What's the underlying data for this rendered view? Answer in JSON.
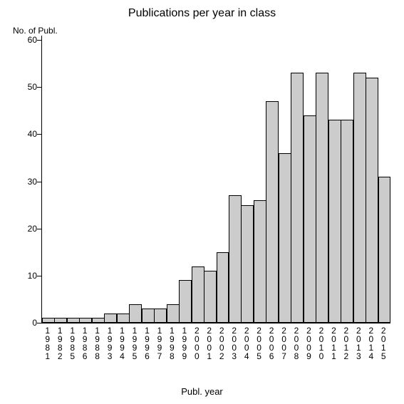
{
  "chart": {
    "type": "bar",
    "title": "Publications per year in class",
    "title_fontsize": 16,
    "ylabel": "No. of Publ.",
    "xlabel": "Publ. year",
    "label_fontsize": 12,
    "ylim": [
      0,
      60
    ],
    "ytick_step": 10,
    "yticks": [
      0,
      10,
      20,
      30,
      40,
      50,
      60
    ],
    "background_color": "#ffffff",
    "bar_color": "#cccccc",
    "bar_border_color": "#000000",
    "axis_color": "#000000",
    "bar_width": 1.0,
    "categories": [
      "1981",
      "1982",
      "1985",
      "1986",
      "1988",
      "1993",
      "1994",
      "1995",
      "1996",
      "1997",
      "1998",
      "1999",
      "2000",
      "2001",
      "2002",
      "2003",
      "2004",
      "2005",
      "2006",
      "2007",
      "2008",
      "2009",
      "2010",
      "2011",
      "2012",
      "2013",
      "2014",
      "2015"
    ],
    "values": [
      1,
      1,
      1,
      1,
      1,
      2,
      2,
      4,
      3,
      3,
      4,
      9,
      12,
      11,
      15,
      27,
      25,
      26,
      47,
      36,
      53,
      44,
      53,
      43,
      43,
      53,
      52,
      31
    ]
  }
}
